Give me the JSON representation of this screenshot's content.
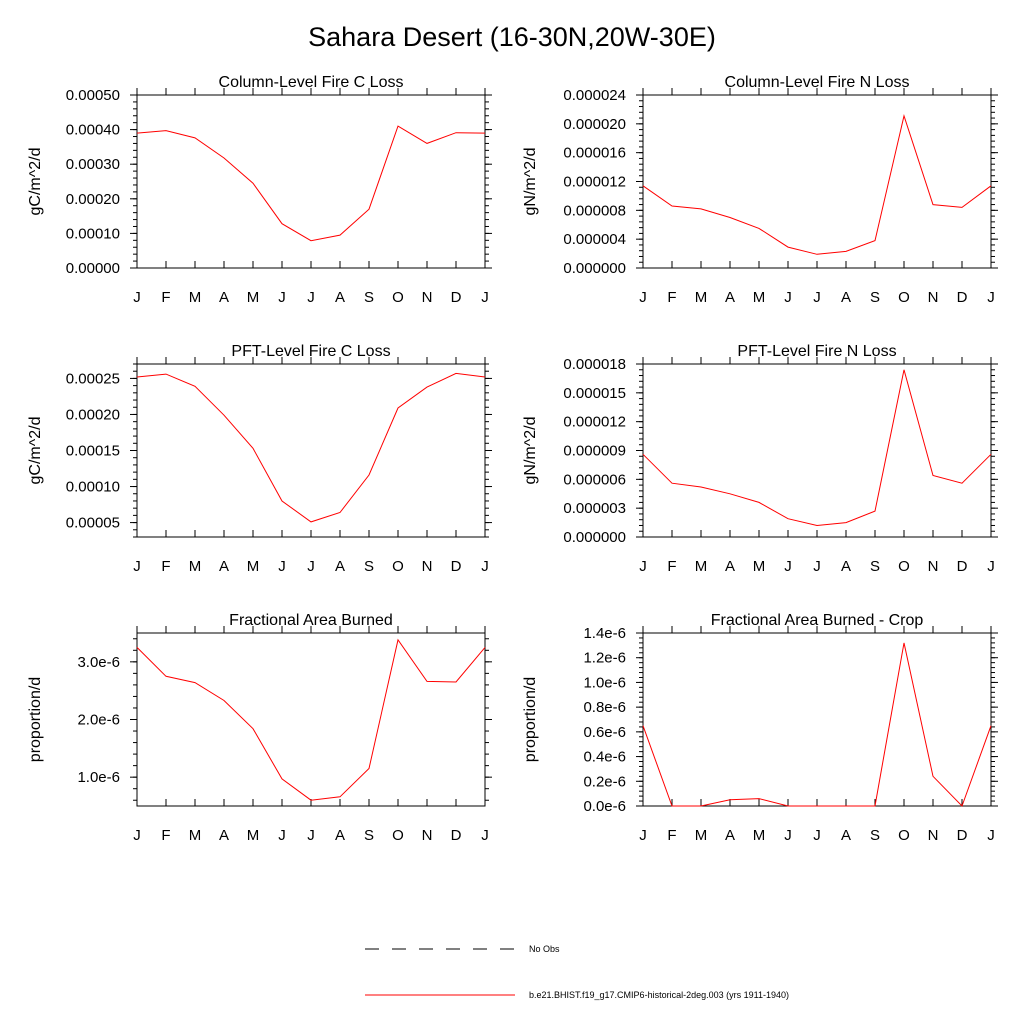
{
  "title": "Sahara Desert (16-30N,20W-30E)",
  "colors": {
    "model_line": "#ff0000",
    "obs_line": "#000000"
  },
  "legend": {
    "obs_label": "No Obs",
    "model_label": "b.e21.BHIST.f19_g17.CMIP6-historical-2deg.003 (yrs 1911-1940)"
  },
  "chart_data": [
    {
      "type": "line",
      "title": "Column-Level Fire C Loss",
      "ylabel": "gC/m^2/d",
      "categories": [
        "J",
        "F",
        "M",
        "A",
        "M",
        "J",
        "J",
        "A",
        "S",
        "O",
        "N",
        "D",
        "J"
      ],
      "ylim": [
        0,
        0.0005
      ],
      "yticks": [
        0,
        0.0001,
        0.0002,
        0.0003,
        0.0004,
        0.0005
      ],
      "ytick_labels": [
        "0.00000",
        "0.00010",
        "0.00020",
        "0.00030",
        "0.00040",
        "0.00050"
      ],
      "series": [
        {
          "values": [
            0.00039,
            0.000397,
            0.000376,
            0.000318,
            0.000245,
            0.000128,
            7.9e-05,
            9.5e-05,
            0.00017,
            0.00041,
            0.00036,
            0.000391,
            0.00039
          ]
        }
      ]
    },
    {
      "type": "line",
      "title": "Column-Level Fire N Loss",
      "ylabel": "gN/m^2/d",
      "categories": [
        "J",
        "F",
        "M",
        "A",
        "M",
        "J",
        "J",
        "A",
        "S",
        "O",
        "N",
        "D",
        "J"
      ],
      "ylim": [
        0,
        2.4e-05
      ],
      "yticks": [
        0,
        4e-06,
        8e-06,
        1.2e-05,
        1.6e-05,
        2e-05,
        2.4e-05
      ],
      "ytick_labels": [
        "0.000000",
        "0.000004",
        "0.000008",
        "0.000012",
        "0.000016",
        "0.000020",
        "0.000024"
      ],
      "series": [
        {
          "values": [
            1.14e-05,
            8.6e-06,
            8.2e-06,
            7e-06,
            5.5e-06,
            2.9e-06,
            1.9e-06,
            2.3e-06,
            3.8e-06,
            2.11e-05,
            8.8e-06,
            8.4e-06,
            1.14e-05
          ]
        }
      ]
    },
    {
      "type": "line",
      "title": "PFT-Level Fire C Loss",
      "ylabel": "gC/m^2/d",
      "categories": [
        "J",
        "F",
        "M",
        "A",
        "M",
        "J",
        "J",
        "A",
        "S",
        "O",
        "N",
        "D",
        "J"
      ],
      "ylim": [
        3e-05,
        0.00027
      ],
      "yticks": [
        5e-05,
        0.0001,
        0.00015,
        0.0002,
        0.00025
      ],
      "ytick_labels": [
        "0.00005",
        "0.00010",
        "0.00015",
        "0.00020",
        "0.00025"
      ],
      "series": [
        {
          "values": [
            0.000252,
            0.000256,
            0.000239,
            0.000199,
            0.000153,
            8e-05,
            5.1e-05,
            6.4e-05,
            0.000116,
            0.000209,
            0.000238,
            0.000257,
            0.000252
          ]
        }
      ]
    },
    {
      "type": "line",
      "title": "PFT-Level Fire N Loss",
      "ylabel": "gN/m^2/d",
      "categories": [
        "J",
        "F",
        "M",
        "A",
        "M",
        "J",
        "J",
        "A",
        "S",
        "O",
        "N",
        "D",
        "J"
      ],
      "ylim": [
        0,
        1.8e-05
      ],
      "yticks": [
        0,
        3e-06,
        6e-06,
        9e-06,
        1.2e-05,
        1.5e-05,
        1.8e-05
      ],
      "ytick_labels": [
        "0.000000",
        "0.000003",
        "0.000006",
        "0.000009",
        "0.000012",
        "0.000015",
        "0.000018"
      ],
      "series": [
        {
          "values": [
            8.6e-06,
            5.6e-06,
            5.2e-06,
            4.5e-06,
            3.6e-06,
            1.9e-06,
            1.2e-06,
            1.5e-06,
            2.7e-06,
            1.74e-05,
            6.4e-06,
            5.6e-06,
            8.6e-06
          ]
        }
      ]
    },
    {
      "type": "line",
      "title": "Fractional Area Burned",
      "ylabel": "proportion/d",
      "categories": [
        "J",
        "F",
        "M",
        "A",
        "M",
        "J",
        "J",
        "A",
        "S",
        "O",
        "N",
        "D",
        "J"
      ],
      "ylim": [
        5e-07,
        3.5e-06
      ],
      "yticks": [
        1e-06,
        2e-06,
        3e-06
      ],
      "ytick_labels": [
        "1.0e-6",
        "2.0e-6",
        "3.0e-6"
      ],
      "series": [
        {
          "values": [
            3.25e-06,
            2.75e-06,
            2.64e-06,
            2.33e-06,
            1.84e-06,
            9.7e-07,
            6e-07,
            6.6e-07,
            1.15e-06,
            3.38e-06,
            2.66e-06,
            2.65e-06,
            3.25e-06
          ]
        }
      ]
    },
    {
      "type": "line",
      "title": "Fractional Area Burned - Crop",
      "ylabel": "proportion/d",
      "categories": [
        "J",
        "F",
        "M",
        "A",
        "M",
        "J",
        "J",
        "A",
        "S",
        "O",
        "N",
        "D",
        "J"
      ],
      "ylim": [
        0,
        1.4e-06
      ],
      "yticks": [
        0,
        2e-07,
        4e-07,
        6e-07,
        8e-07,
        1e-06,
        1.2e-06,
        1.4e-06
      ],
      "ytick_labels": [
        "0.0e-6",
        "0.2e-6",
        "0.4e-6",
        "0.6e-6",
        "0.8e-6",
        "1.0e-6",
        "1.2e-6",
        "1.4e-6"
      ],
      "series": [
        {
          "values": [
            6.5e-07,
            0,
            0,
            5e-08,
            6e-08,
            0,
            0,
            0,
            0,
            1.32e-06,
            2.4e-07,
            0,
            6.5e-07
          ]
        }
      ]
    }
  ]
}
